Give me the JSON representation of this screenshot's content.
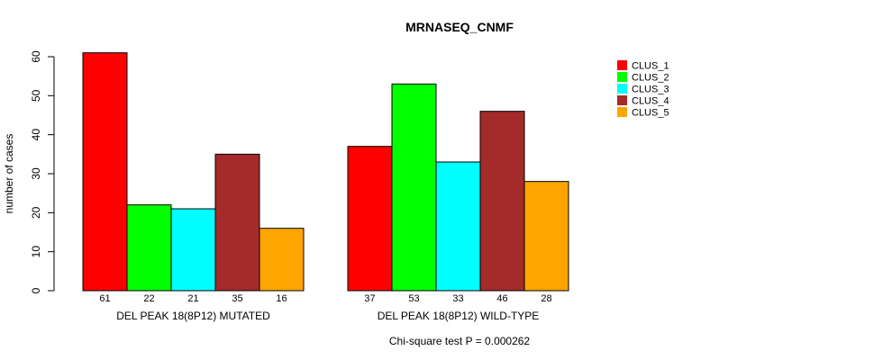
{
  "chart_data": {
    "type": "bar",
    "title": "MRNASEQ_CNMF",
    "ylabel": "number of cases",
    "xlabel": "",
    "ylim": [
      0,
      60
    ],
    "yticks": [
      0,
      10,
      20,
      30,
      40,
      50,
      60
    ],
    "grid": false,
    "legend_position": "right",
    "groups": [
      "DEL PEAK 18(8P12) MUTATED",
      "DEL PEAK 18(8P12) WILD-TYPE"
    ],
    "series": [
      {
        "name": "CLUS_1",
        "color": "#ff0000",
        "values": [
          61,
          37
        ]
      },
      {
        "name": "CLUS_2",
        "color": "#00ff00",
        "values": [
          22,
          53
        ]
      },
      {
        "name": "CLUS_3",
        "color": "#00ffff",
        "values": [
          21,
          33
        ]
      },
      {
        "name": "CLUS_4",
        "color": "#a52a2a",
        "values": [
          35,
          46
        ]
      },
      {
        "name": "CLUS_5",
        "color": "#ffa500",
        "values": [
          16,
          28
        ]
      }
    ],
    "footnote": "Chi-square test P = 0.000262"
  }
}
